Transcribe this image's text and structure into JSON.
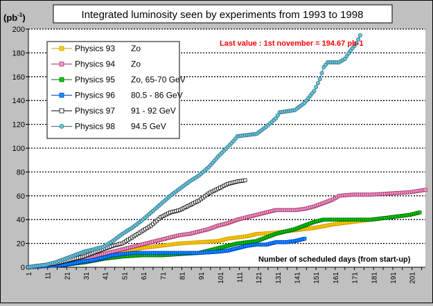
{
  "chart_data": {
    "type": "line",
    "title": "Integrated luminosity seen by experiments from 1993 to 1998",
    "ylabel_base": "(pb",
    "ylabel_sup": "-1",
    "ylabel_end": ")",
    "xlabel": "Number of scheduled days (from start-up)",
    "annotation": "Last value : 1st november = 194.67 pb-1",
    "xlim": [
      1,
      208
    ],
    "ylim": [
      0,
      200
    ],
    "yticks": [
      0,
      20,
      40,
      60,
      80,
      100,
      120,
      140,
      160,
      180,
      200
    ],
    "xticks": [
      1,
      11,
      21,
      31,
      41,
      51,
      61,
      71,
      81,
      91,
      101,
      111,
      121,
      131,
      141,
      151,
      161,
      171,
      181,
      191,
      201
    ],
    "grid": "horizontal dotted",
    "legend_position": "top-left",
    "series": [
      {
        "name": "Physics 93",
        "energy": "Zo",
        "color": "#ffcc00",
        "edge": "#cc9900",
        "marker": "square",
        "points": [
          [
            1,
            0
          ],
          [
            10,
            1
          ],
          [
            20,
            3
          ],
          [
            30,
            6
          ],
          [
            40,
            9
          ],
          [
            50,
            13
          ],
          [
            60,
            16
          ],
          [
            70,
            18
          ],
          [
            80,
            20
          ],
          [
            90,
            21
          ],
          [
            100,
            22
          ],
          [
            105,
            24
          ],
          [
            110,
            25
          ],
          [
            115,
            26
          ],
          [
            120,
            28
          ],
          [
            130,
            29
          ],
          [
            140,
            31
          ],
          [
            150,
            33
          ],
          [
            160,
            36
          ],
          [
            170,
            38
          ],
          [
            180,
            40
          ],
          [
            185,
            41
          ]
        ]
      },
      {
        "name": "Physics 94",
        "energy": "Zo",
        "color": "#ff99cc",
        "edge": "#993366",
        "marker": "square",
        "points": [
          [
            1,
            0
          ],
          [
            10,
            1
          ],
          [
            20,
            3
          ],
          [
            30,
            7
          ],
          [
            40,
            11
          ],
          [
            50,
            15
          ],
          [
            55,
            17
          ],
          [
            60,
            19
          ],
          [
            65,
            21
          ],
          [
            70,
            23
          ],
          [
            75,
            25
          ],
          [
            80,
            27
          ],
          [
            85,
            28
          ],
          [
            90,
            30
          ],
          [
            95,
            32
          ],
          [
            100,
            35
          ],
          [
            105,
            37
          ],
          [
            110,
            40
          ],
          [
            115,
            42
          ],
          [
            120,
            44
          ],
          [
            125,
            46
          ],
          [
            130,
            48
          ],
          [
            140,
            48
          ],
          [
            145,
            49
          ],
          [
            150,
            51
          ],
          [
            155,
            54
          ],
          [
            160,
            57
          ],
          [
            163,
            60
          ],
          [
            170,
            61
          ],
          [
            180,
            61
          ],
          [
            190,
            62
          ],
          [
            200,
            63
          ],
          [
            208,
            65
          ]
        ]
      },
      {
        "name": "Physics 95",
        "energy": "Zo, 65-70 GeV",
        "color": "#00cc00",
        "edge": "#006600",
        "marker": "square",
        "points": [
          [
            1,
            0
          ],
          [
            10,
            1
          ],
          [
            20,
            2
          ],
          [
            30,
            4
          ],
          [
            40,
            7
          ],
          [
            50,
            9
          ],
          [
            60,
            10
          ],
          [
            70,
            10
          ],
          [
            80,
            11
          ],
          [
            90,
            12
          ],
          [
            95,
            14
          ],
          [
            100,
            16
          ],
          [
            105,
            18
          ],
          [
            110,
            20
          ],
          [
            115,
            21
          ],
          [
            120,
            22
          ],
          [
            125,
            25
          ],
          [
            130,
            28
          ],
          [
            135,
            30
          ],
          [
            140,
            32
          ],
          [
            145,
            35
          ],
          [
            150,
            38
          ],
          [
            155,
            40
          ],
          [
            160,
            40
          ],
          [
            170,
            40
          ],
          [
            180,
            40
          ],
          [
            190,
            42
          ],
          [
            200,
            44
          ],
          [
            205,
            46
          ]
        ]
      },
      {
        "name": "Physics 96",
        "energy": "80.5 - 86 GeV",
        "color": "#0099ff",
        "edge": "#0033cc",
        "marker": "square",
        "points": [
          [
            1,
            0
          ],
          [
            10,
            1
          ],
          [
            20,
            2
          ],
          [
            30,
            5
          ],
          [
            35,
            6
          ],
          [
            40,
            8
          ],
          [
            45,
            10
          ],
          [
            50,
            11
          ],
          [
            55,
            12
          ],
          [
            60,
            12
          ],
          [
            70,
            12
          ],
          [
            80,
            12
          ],
          [
            90,
            12
          ],
          [
            100,
            13
          ],
          [
            105,
            14
          ],
          [
            110,
            16
          ],
          [
            115,
            18
          ],
          [
            120,
            19
          ],
          [
            125,
            19
          ],
          [
            130,
            21
          ],
          [
            135,
            21
          ],
          [
            140,
            22
          ],
          [
            145,
            24
          ]
        ]
      },
      {
        "name": "Physics 97",
        "energy": "91 - 92 GeV",
        "color": "#ffffff",
        "edge": "#000000",
        "marker": "square",
        "points": [
          [
            1,
            0
          ],
          [
            5,
            1
          ],
          [
            10,
            2
          ],
          [
            15,
            3
          ],
          [
            20,
            5
          ],
          [
            25,
            7
          ],
          [
            30,
            9
          ],
          [
            35,
            12
          ],
          [
            40,
            15
          ],
          [
            45,
            18
          ],
          [
            50,
            20
          ],
          [
            55,
            25
          ],
          [
            60,
            30
          ],
          [
            65,
            35
          ],
          [
            70,
            42
          ],
          [
            75,
            46
          ],
          [
            80,
            48
          ],
          [
            85,
            52
          ],
          [
            90,
            56
          ],
          [
            95,
            62
          ],
          [
            100,
            66
          ],
          [
            105,
            70
          ],
          [
            110,
            72
          ],
          [
            114,
            73
          ]
        ]
      },
      {
        "name": "Physics 98",
        "energy": "94.5 GeV",
        "color": "#66cccc",
        "edge": "#336699",
        "marker": "circle",
        "points": [
          [
            1,
            0
          ],
          [
            5,
            1
          ],
          [
            10,
            2
          ],
          [
            15,
            4
          ],
          [
            20,
            7
          ],
          [
            25,
            10
          ],
          [
            30,
            13
          ],
          [
            35,
            15
          ],
          [
            40,
            17
          ],
          [
            45,
            22
          ],
          [
            50,
            28
          ],
          [
            55,
            33
          ],
          [
            60,
            39
          ],
          [
            65,
            46
          ],
          [
            70,
            53
          ],
          [
            75,
            60
          ],
          [
            80,
            66
          ],
          [
            85,
            72
          ],
          [
            90,
            77
          ],
          [
            95,
            84
          ],
          [
            100,
            93
          ],
          [
            105,
            101
          ],
          [
            108,
            106
          ],
          [
            110,
            110
          ],
          [
            115,
            111
          ],
          [
            120,
            112
          ],
          [
            125,
            118
          ],
          [
            130,
            125
          ],
          [
            132,
            130
          ],
          [
            140,
            132
          ],
          [
            145,
            138
          ],
          [
            150,
            148
          ],
          [
            153,
            158
          ],
          [
            155,
            168
          ],
          [
            157,
            172
          ],
          [
            160,
            172
          ],
          [
            163,
            172
          ],
          [
            166,
            175
          ],
          [
            169,
            182
          ],
          [
            172,
            188
          ],
          [
            174,
            194.67
          ]
        ]
      }
    ]
  }
}
